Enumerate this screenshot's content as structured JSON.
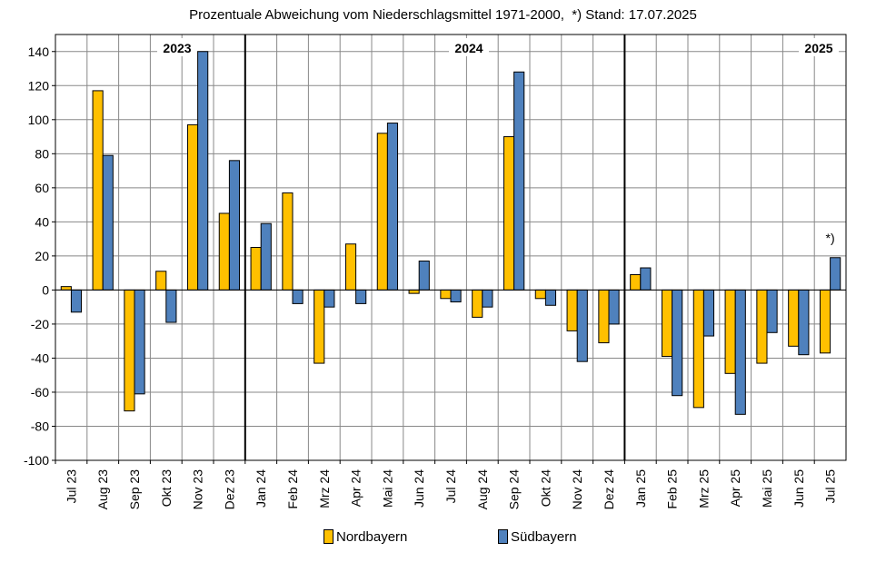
{
  "chart_data": {
    "type": "bar",
    "title": "Prozentuale Abweichung vom Niederschlagsmittel 1971-2000,  *) Stand: 17.07.2025",
    "categories": [
      "Jul 23",
      "Aug 23",
      "Sep 23",
      "Okt 23",
      "Nov 23",
      "Dez 23",
      "Jan 24",
      "Feb 24",
      "Mrz 24",
      "Apr 24",
      "Mai 24",
      "Jun 24",
      "Jul 24",
      "Aug 24",
      "Sep 24",
      "Okt 24",
      "Nov 24",
      "Dez 24",
      "Jan 25",
      "Feb 25",
      "Mrz 25",
      "Apr 25",
      "Mai 25",
      "Jun 25",
      "Jul 25"
    ],
    "series": [
      {
        "name": "Nordbayern",
        "color": "#FFC000",
        "values": [
          2,
          117,
          -71,
          11,
          97,
          45,
          25,
          57,
          -43,
          27,
          92,
          -2,
          -5,
          -16,
          90,
          -5,
          -24,
          -31,
          9,
          -39,
          -69,
          -49,
          -43,
          -33,
          -37
        ]
      },
      {
        "name": "Südbayern",
        "color": "#4F81BD",
        "values": [
          -13,
          79,
          -61,
          -19,
          140,
          76,
          39,
          -8,
          -10,
          -8,
          98,
          17,
          -7,
          -10,
          128,
          -9,
          -42,
          -20,
          13,
          -62,
          -27,
          -73,
          -25,
          -38,
          19
        ]
      }
    ],
    "ylim": [
      -100,
      150
    ],
    "yticks": [
      -100,
      -80,
      -60,
      -40,
      -20,
      0,
      20,
      40,
      60,
      80,
      100,
      120,
      140
    ],
    "year_labels": [
      {
        "text": "2023",
        "after_index": 1
      },
      {
        "text": "2024",
        "after_index": 12
      },
      {
        "text": "2025",
        "after_index": 24
      }
    ],
    "year_separators_before": [
      6,
      18
    ],
    "annotation": {
      "text": "*)",
      "category_index": 24
    },
    "legend": {
      "position": "bottom"
    },
    "grid": true
  }
}
